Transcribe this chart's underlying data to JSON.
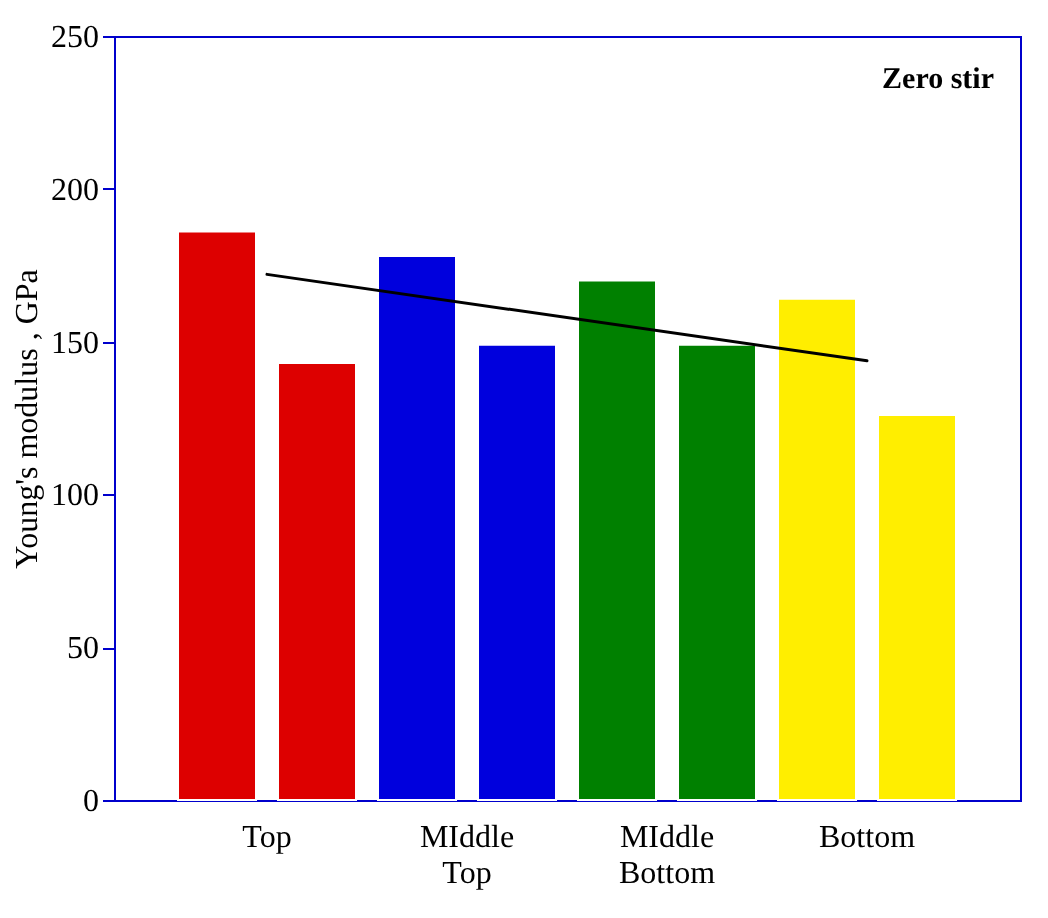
{
  "chart_data": {
    "type": "bar",
    "title": "Zero stir",
    "ylabel": "Young's modulus , GPa",
    "categories": [
      "Top",
      "MIddle Top",
      "MIddle Bottom",
      "Bottom"
    ],
    "series": [
      {
        "colors": [
          "#dd0000",
          "#0000dd",
          "#008000",
          "#ffee00"
        ],
        "values": [
          186,
          178,
          170,
          164
        ]
      },
      {
        "colors": [
          "#dd0000",
          "#0000dd",
          "#008000",
          "#ffee00"
        ],
        "values": [
          143,
          149,
          149,
          126
        ]
      },
      {
        "type": "line",
        "color": "#000000",
        "x": [
          "Top",
          "Bottom"
        ],
        "values": [
          172,
          143.7
        ]
      }
    ],
    "ylim": [
      0,
      250
    ],
    "yticks": [
      0,
      50,
      100,
      150,
      200,
      250
    ],
    "grid": false
  }
}
